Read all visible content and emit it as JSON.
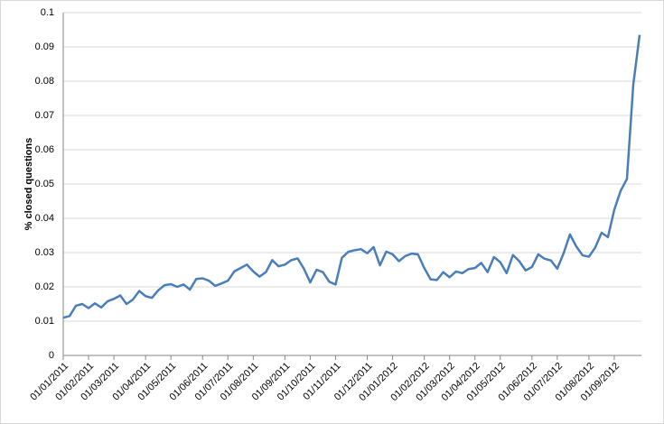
{
  "chart_data": {
    "type": "line",
    "y_label": "% closed questions",
    "categories": [
      "01/01/2011",
      null,
      null,
      null,
      "01/02/2011",
      null,
      null,
      null,
      "01/03/2011",
      null,
      null,
      null,
      null,
      "01/04/2011",
      null,
      null,
      null,
      "01/05/2011",
      null,
      null,
      null,
      null,
      "01/06/2011",
      null,
      null,
      null,
      "01/07/2011",
      null,
      null,
      null,
      "01/08/2011",
      null,
      null,
      null,
      null,
      "01/09/2011",
      null,
      null,
      null,
      "01/10/2011",
      null,
      null,
      null,
      "01/11/2011",
      null,
      null,
      null,
      null,
      "01/12/2011",
      null,
      null,
      null,
      "01/01/2012",
      null,
      null,
      null,
      null,
      "01/02/2012",
      null,
      null,
      null,
      "01/03/2012",
      null,
      null,
      null,
      "01/04/2012",
      null,
      null,
      null,
      "01/05/2012",
      null,
      null,
      null,
      null,
      "01/06/2012",
      null,
      null,
      null,
      "01/07/2012",
      null,
      null,
      null,
      null,
      "01/08/2012",
      null,
      null,
      null,
      "01/09/2012",
      null,
      null,
      null,
      null
    ],
    "values": [
      0.011,
      0.0115,
      0.0145,
      0.015,
      0.0138,
      0.0152,
      0.014,
      0.0158,
      0.0165,
      0.0175,
      0.015,
      0.0163,
      0.0188,
      0.0173,
      0.0168,
      0.019,
      0.0205,
      0.0208,
      0.02,
      0.0207,
      0.0192,
      0.0223,
      0.0225,
      0.0218,
      0.0203,
      0.021,
      0.0218,
      0.0245,
      0.0255,
      0.0265,
      0.0245,
      0.023,
      0.0243,
      0.0278,
      0.026,
      0.0265,
      0.0278,
      0.0283,
      0.0253,
      0.0213,
      0.025,
      0.0243,
      0.0215,
      0.0207,
      0.0285,
      0.0302,
      0.0307,
      0.031,
      0.0298,
      0.0316,
      0.0263,
      0.0303,
      0.0295,
      0.0275,
      0.029,
      0.0297,
      0.0295,
      0.0255,
      0.0222,
      0.022,
      0.0243,
      0.0228,
      0.0245,
      0.024,
      0.0252,
      0.0255,
      0.027,
      0.0243,
      0.0287,
      0.0272,
      0.024,
      0.0293,
      0.0275,
      0.0248,
      0.0258,
      0.0295,
      0.0282,
      0.0277,
      0.0253,
      0.0298,
      0.0353,
      0.0318,
      0.0292,
      0.0288,
      0.0315,
      0.0358,
      0.0345,
      0.0425,
      0.048,
      0.0515,
      0.079,
      0.0935
    ],
    "color": "#4a7ebb",
    "ylim": [
      0,
      0.1
    ],
    "yticks": [
      0,
      0.01,
      0.02,
      0.03,
      0.04,
      0.05,
      0.06,
      0.07,
      0.08,
      0.09,
      0.1
    ],
    "grid": true
  }
}
